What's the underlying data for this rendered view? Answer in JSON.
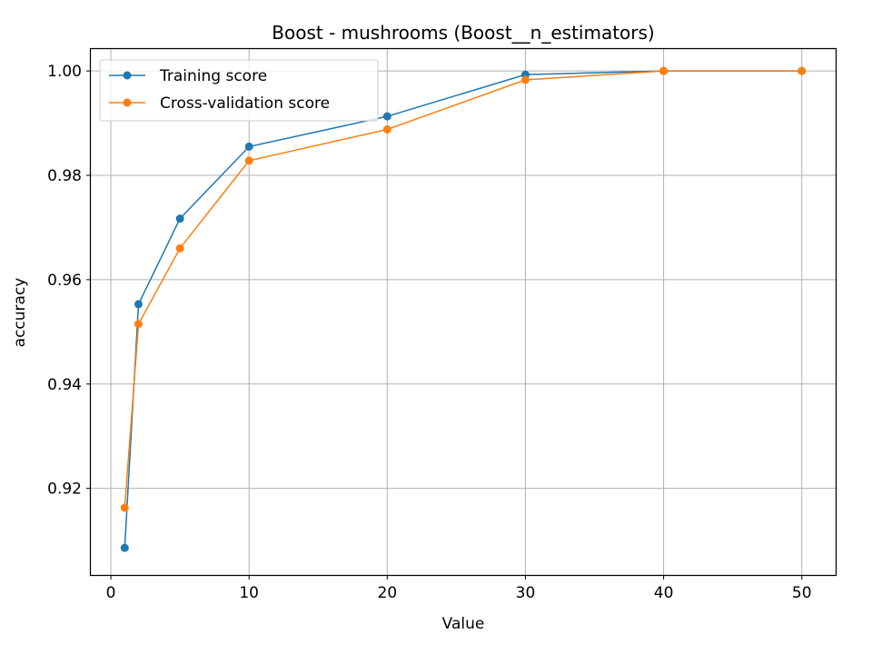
{
  "chart_data": {
    "type": "line",
    "title": "Boost - mushrooms (Boost__n_estimators)",
    "xlabel": "Value",
    "ylabel": "accuracy",
    "x": [
      1,
      2,
      5,
      10,
      20,
      30,
      40,
      50
    ],
    "xlim": [
      -1.45,
      52.45
    ],
    "ylim": [
      0.9034,
      1.0042
    ],
    "xticks": [
      0,
      10,
      20,
      30,
      40,
      50
    ],
    "xtick_labels": [
      "0",
      "10",
      "20",
      "30",
      "40",
      "50"
    ],
    "yticks": [
      0.92,
      0.94,
      0.96,
      0.98,
      1.0
    ],
    "ytick_labels": [
      "0.92",
      "0.94",
      "0.96",
      "0.98",
      "1.00"
    ],
    "grid": true,
    "legend_position": "upper-left",
    "series": [
      {
        "name": "Training score",
        "color": "#1f77b4",
        "values": [
          0.9086,
          0.9553,
          0.9717,
          0.9855,
          0.9913,
          0.9993,
          1.0,
          1.0
        ]
      },
      {
        "name": "Cross-validation score",
        "color": "#ff7f0e",
        "values": [
          0.9163,
          0.9515,
          0.966,
          0.9828,
          0.9888,
          0.9983,
          1.0,
          1.0
        ]
      }
    ]
  }
}
